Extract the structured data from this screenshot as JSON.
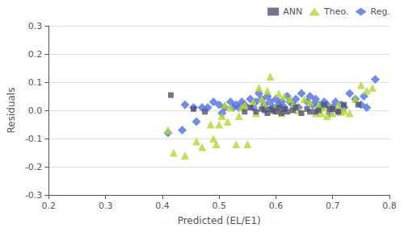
{
  "chart_data": {
    "type": "scatter",
    "xlabel": "Predicted (EL/E1)",
    "ylabel": "Residuals",
    "xlim": [
      0.2,
      0.8
    ],
    "ylim": [
      -0.3,
      0.3
    ],
    "xticks": [
      0.2,
      0.3,
      0.4,
      0.5,
      0.6,
      0.7,
      0.8
    ],
    "yticks": [
      -0.3,
      -0.2,
      -0.1,
      {
        "value": 0,
        "label": "0.0"
      },
      0.1,
      0.2,
      0.3
    ],
    "grid": "y",
    "legend": "upper right",
    "series": [
      {
        "name": "ANN",
        "marker": "square",
        "x": [
          0.415,
          0.455,
          0.475,
          0.545,
          0.555,
          0.565,
          0.575,
          0.58,
          0.585,
          0.59,
          0.595,
          0.6,
          0.605,
          0.61,
          0.615,
          0.62,
          0.63,
          0.635,
          0.645,
          0.655,
          0.66,
          0.67,
          0.675,
          0.685,
          0.695,
          0.7,
          0.71,
          0.72,
          0.745
        ],
        "values": [
          0.054,
          0.005,
          -0.005,
          -0.005,
          0.01,
          -0.005,
          0.005,
          0.0,
          -0.01,
          0.005,
          0.0,
          -0.005,
          0.01,
          -0.01,
          0.005,
          -0.005,
          0.0,
          0.01,
          -0.01,
          0.005,
          -0.005,
          -0.005,
          0.0,
          0.02,
          0.005,
          0.005,
          -0.005,
          0.02,
          0.02
        ]
      },
      {
        "name": "Theo.",
        "marker": "triangle",
        "x": [
          0.41,
          0.42,
          0.44,
          0.46,
          0.47,
          0.485,
          0.49,
          0.495,
          0.5,
          0.505,
          0.51,
          0.515,
          0.52,
          0.53,
          0.535,
          0.54,
          0.545,
          0.55,
          0.56,
          0.565,
          0.57,
          0.575,
          0.58,
          0.585,
          0.59,
          0.595,
          0.6,
          0.605,
          0.61,
          0.615,
          0.625,
          0.63,
          0.64,
          0.65,
          0.66,
          0.67,
          0.675,
          0.68,
          0.685,
          0.69,
          0.695,
          0.7,
          0.71,
          0.715,
          0.72,
          0.73,
          0.74,
          0.75,
          0.76,
          0.77
        ],
        "values": [
          -0.07,
          -0.15,
          -0.16,
          -0.11,
          -0.13,
          -0.05,
          -0.1,
          -0.12,
          -0.05,
          -0.02,
          0.02,
          -0.04,
          0.01,
          -0.12,
          -0.02,
          0.01,
          0.02,
          -0.12,
          0.03,
          -0.01,
          0.08,
          0.04,
          0.02,
          0.07,
          0.12,
          0.0,
          0.01,
          0.06,
          -0.01,
          0.05,
          0.04,
          0.02,
          0.0,
          0.04,
          0.03,
          -0.01,
          0.02,
          -0.01,
          0.01,
          -0.02,
          0.01,
          -0.01,
          0.02,
          -0.005,
          0.0,
          -0.01,
          0.04,
          0.09,
          0.07,
          0.08
        ]
      },
      {
        "name": "Reg.",
        "marker": "diamond",
        "x": [
          0.41,
          0.435,
          0.44,
          0.455,
          0.46,
          0.47,
          0.48,
          0.49,
          0.5,
          0.505,
          0.51,
          0.52,
          0.525,
          0.53,
          0.535,
          0.54,
          0.545,
          0.555,
          0.56,
          0.565,
          0.57,
          0.575,
          0.58,
          0.585,
          0.59,
          0.595,
          0.6,
          0.605,
          0.61,
          0.615,
          0.62,
          0.625,
          0.63,
          0.635,
          0.64,
          0.645,
          0.655,
          0.66,
          0.665,
          0.67,
          0.675,
          0.68,
          0.685,
          0.69,
          0.695,
          0.7,
          0.705,
          0.71,
          0.715,
          0.72,
          0.73,
          0.74,
          0.75,
          0.755,
          0.76,
          0.775
        ],
        "values": [
          -0.08,
          -0.07,
          0.02,
          0.01,
          -0.04,
          0.01,
          0.01,
          0.03,
          0.02,
          -0.01,
          0.01,
          0.03,
          0.01,
          0.02,
          0.01,
          0.03,
          0.02,
          0.04,
          0.01,
          0.03,
          0.06,
          0.04,
          0.02,
          0.05,
          0.03,
          0.01,
          0.04,
          0.02,
          0.03,
          0.01,
          0.05,
          0.03,
          0.02,
          0.04,
          0.01,
          0.06,
          0.03,
          0.05,
          0.02,
          0.04,
          0.02,
          0.01,
          0.03,
          0.02,
          -0.01,
          0.01,
          0.03,
          -0.005,
          0.02,
          0.01,
          0.06,
          0.04,
          0.02,
          0.05,
          0.01,
          0.11
        ]
      }
    ]
  }
}
